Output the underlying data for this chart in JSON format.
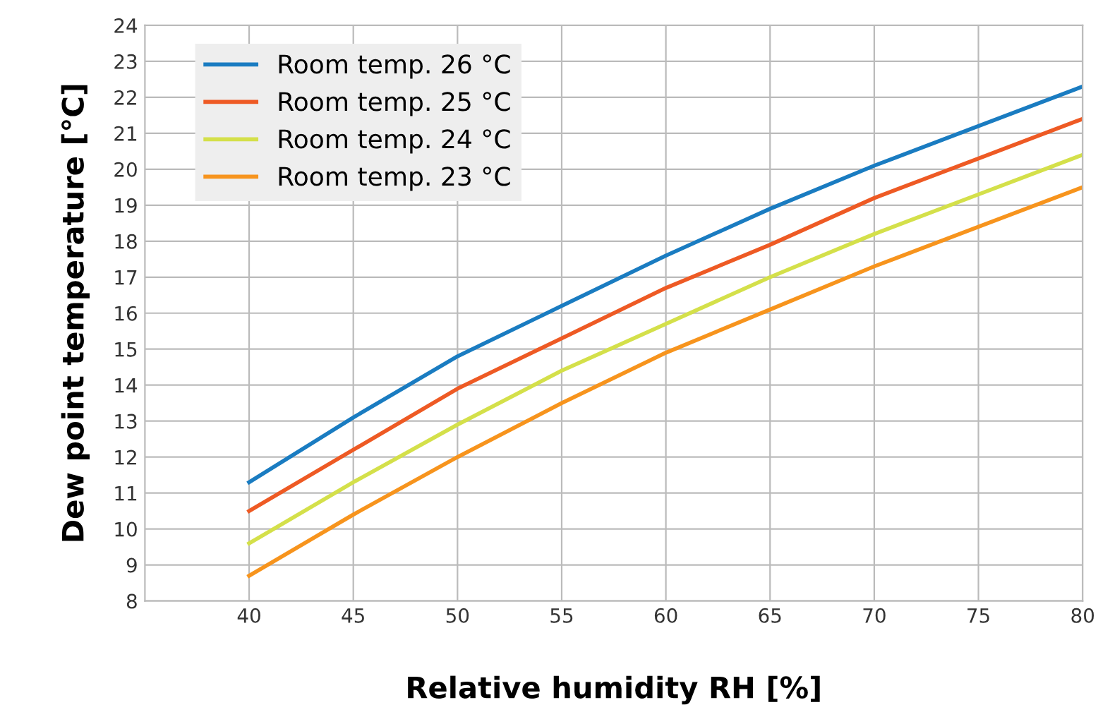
{
  "chart_data": {
    "type": "line",
    "xlabel": "Relative humidity RH [%]",
    "ylabel": "Dew point temperature [°C]",
    "x": [
      40,
      45,
      50,
      55,
      60,
      65,
      70,
      75,
      80
    ],
    "series": [
      {
        "name": "Room temp. 26 °C",
        "color": "#1a7cc1",
        "values": [
          11.3,
          13.1,
          14.8,
          16.2,
          17.6,
          18.9,
          20.1,
          21.2,
          22.3
        ]
      },
      {
        "name": "Room temp. 25 °C",
        "color": "#ee5a24",
        "values": [
          10.5,
          12.2,
          13.9,
          15.3,
          16.7,
          17.9,
          19.2,
          20.3,
          21.4
        ]
      },
      {
        "name": "Room temp. 24 °C",
        "color": "#d4e04a",
        "values": [
          9.6,
          11.3,
          12.9,
          14.4,
          15.7,
          17.0,
          18.2,
          19.3,
          20.4
        ]
      },
      {
        "name": "Room temp. 23 °C",
        "color": "#f7941d",
        "values": [
          8.7,
          10.4,
          12.0,
          13.5,
          14.9,
          16.1,
          17.3,
          18.4,
          19.5
        ]
      }
    ],
    "xlim": [
      35,
      80
    ],
    "xticks": [
      40,
      45,
      50,
      55,
      60,
      65,
      70,
      75,
      80
    ],
    "ylim": [
      8,
      24
    ],
    "yticks": [
      8,
      9,
      10,
      11,
      12,
      13,
      14,
      15,
      16,
      17,
      18,
      19,
      20,
      21,
      22,
      23,
      24
    ],
    "grid": true,
    "legend": "top left",
    "marker": "none",
    "line_style": "solid"
  }
}
